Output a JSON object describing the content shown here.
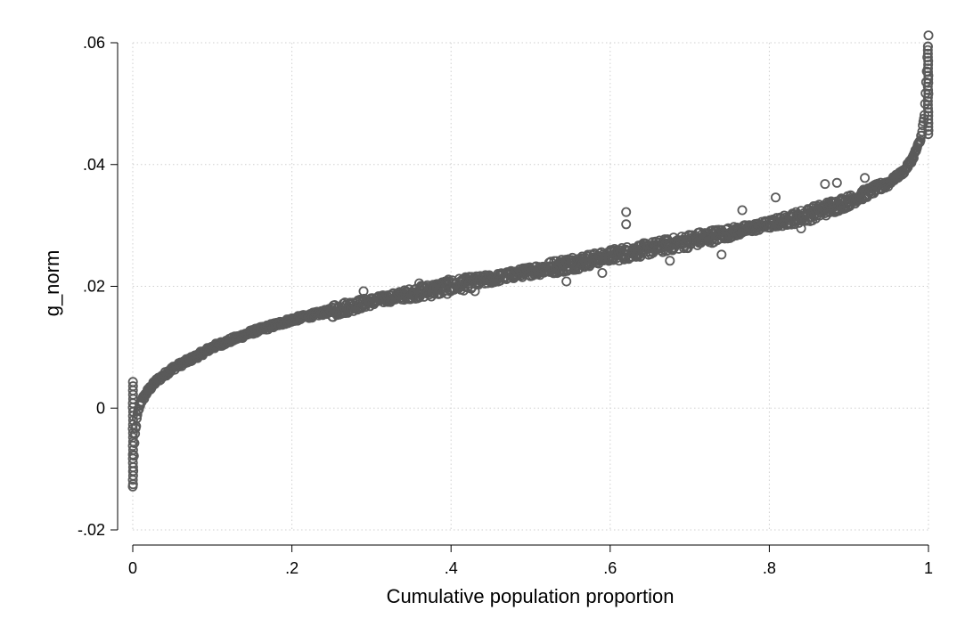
{
  "chart_data": {
    "type": "scatter",
    "title": "",
    "xlabel": "Cumulative population proportion",
    "ylabel": "g_norm",
    "xlim": [
      0,
      1
    ],
    "ylim": [
      -0.02,
      0.06
    ],
    "x_ticks": [
      0,
      0.2,
      0.4,
      0.6,
      0.8,
      1
    ],
    "x_tick_labels": [
      "0",
      ".2",
      ".4",
      ".6",
      ".8",
      "1"
    ],
    "y_ticks": [
      -0.02,
      0,
      0.02,
      0.04,
      0.06
    ],
    "y_tick_labels": [
      "-.02",
      "0",
      ".02",
      ".04",
      ".06"
    ],
    "grid": "dotted",
    "marker": "hollow-circle",
    "marker_color": "#5a5a5a",
    "curve_points": [
      {
        "x": 0.0,
        "y": -0.013
      },
      {
        "x": 0.001,
        "y": -0.009
      },
      {
        "x": 0.003,
        "y": -0.004
      },
      {
        "x": 0.006,
        "y": -0.001
      },
      {
        "x": 0.01,
        "y": 0.001
      },
      {
        "x": 0.02,
        "y": 0.003
      },
      {
        "x": 0.03,
        "y": 0.0045
      },
      {
        "x": 0.05,
        "y": 0.0065
      },
      {
        "x": 0.08,
        "y": 0.0085
      },
      {
        "x": 0.1,
        "y": 0.01
      },
      {
        "x": 0.15,
        "y": 0.0125
      },
      {
        "x": 0.2,
        "y": 0.0145
      },
      {
        "x": 0.25,
        "y": 0.016
      },
      {
        "x": 0.3,
        "y": 0.0175
      },
      {
        "x": 0.35,
        "y": 0.0188
      },
      {
        "x": 0.4,
        "y": 0.02
      },
      {
        "x": 0.45,
        "y": 0.0212
      },
      {
        "x": 0.5,
        "y": 0.0225
      },
      {
        "x": 0.55,
        "y": 0.0237
      },
      {
        "x": 0.6,
        "y": 0.025
      },
      {
        "x": 0.65,
        "y": 0.0262
      },
      {
        "x": 0.7,
        "y": 0.0275
      },
      {
        "x": 0.75,
        "y": 0.0288
      },
      {
        "x": 0.8,
        "y": 0.0302
      },
      {
        "x": 0.85,
        "y": 0.0318
      },
      {
        "x": 0.9,
        "y": 0.034
      },
      {
        "x": 0.95,
        "y": 0.037
      },
      {
        "x": 0.97,
        "y": 0.039
      },
      {
        "x": 0.98,
        "y": 0.041
      },
      {
        "x": 0.99,
        "y": 0.044
      },
      {
        "x": 0.995,
        "y": 0.048
      },
      {
        "x": 1.0,
        "y": 0.061
      }
    ],
    "outliers": [
      {
        "x": 0.62,
        "y": 0.0322
      },
      {
        "x": 0.62,
        "y": 0.0302
      },
      {
        "x": 0.808,
        "y": 0.0346
      },
      {
        "x": 0.766,
        "y": 0.0325
      },
      {
        "x": 0.87,
        "y": 0.0368
      },
      {
        "x": 0.885,
        "y": 0.037
      },
      {
        "x": 0.59,
        "y": 0.0222
      },
      {
        "x": 0.545,
        "y": 0.0208
      },
      {
        "x": 0.43,
        "y": 0.0192
      },
      {
        "x": 0.29,
        "y": 0.0192
      },
      {
        "x": 0.36,
        "y": 0.0205
      },
      {
        "x": 0.84,
        "y": 0.0295
      },
      {
        "x": 0.74,
        "y": 0.0252
      },
      {
        "x": 0.675,
        "y": 0.0242
      },
      {
        "x": 0.92,
        "y": 0.0378
      }
    ]
  }
}
